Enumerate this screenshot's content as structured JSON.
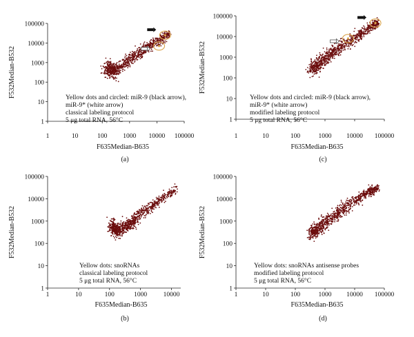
{
  "figure": {
    "panels": [
      {
        "id": "a",
        "label": "(a)",
        "xlabel": "F635Median-B635",
        "ylabel": "F532Median-B532",
        "annotation": [
          "Yellow dots and circled: miR-9 (black arrow),",
          "miR-9* (white arrow)",
          "classical labeling protocol",
          "5 μg total RNA, 56°C"
        ],
        "xticks": [
          "1",
          "10",
          "100",
          "1000",
          "10000",
          "100000"
        ],
        "yticks": [
          "1",
          "10",
          "100",
          "1000",
          "10000",
          "100000"
        ]
      },
      {
        "id": "c",
        "label": "(c)",
        "xlabel": "F635Median-B635",
        "ylabel": "F532Median-B532",
        "annotation": [
          "Yellow dots and circled: miR-9 (black arrow),",
          "miR-9* (white arrow)",
          "modified labeling protocol",
          "5 μg total RNA, 56°C"
        ],
        "xticks": [
          "1",
          "10",
          "100",
          "1000",
          "10000",
          "100000"
        ],
        "yticks": [
          "1",
          "10",
          "100",
          "1000",
          "10000",
          "100000"
        ]
      },
      {
        "id": "b",
        "label": "(b)",
        "xlabel": "F635Median-B635",
        "ylabel": "F532Median-B532",
        "annotation": [
          "Yellow dots: snoRNAs",
          "classical labeling protocol",
          "5 μg total RNA, 56°C"
        ],
        "xticks": [
          "1",
          "10",
          "100",
          "1000",
          "10000"
        ],
        "yticks": [
          "1",
          "10",
          "100",
          "1000",
          "10000",
          "100000"
        ]
      },
      {
        "id": "d",
        "label": "(d)",
        "xlabel": "F635Median-B635",
        "ylabel": "F532Median-B532",
        "annotation": [
          "Yellow dots: snoRNAs antisense probes",
          "modified labeling protocol",
          "5 μg total RNA, 56°C"
        ],
        "xticks": [
          "1",
          "10",
          "100",
          "1000",
          "10000",
          "100000"
        ],
        "yticks": [
          "1",
          "10",
          "100",
          "1000",
          "10000",
          "100000"
        ]
      }
    ],
    "colors": {
      "points": "#6b0d0d",
      "highlight": "#d9a24a",
      "axis": "#222222"
    }
  },
  "chart_data": [
    {
      "type": "scatter",
      "panel": "(a)",
      "xscale": "log",
      "yscale": "log",
      "xlim": [
        1,
        100000
      ],
      "ylim": [
        1,
        100000
      ],
      "grid": false,
      "xlabel": "F635Median-B635",
      "ylabel": "F532Median-B532",
      "cloud_trend": [
        [
          150,
          500
        ],
        [
          300,
          350
        ],
        [
          1000,
          1400
        ],
        [
          3000,
          4000
        ],
        [
          10000,
          12000
        ],
        [
          30000,
          30000
        ]
      ],
      "highlights": [
        {
          "name": "miR-9",
          "x": 20000,
          "y": 25000,
          "marker": "black arrow"
        },
        {
          "name": "miR-9*",
          "x": 12000,
          "y": 7000,
          "marker": "white arrow"
        }
      ]
    },
    {
      "type": "scatter",
      "panel": "(c)",
      "xscale": "log",
      "yscale": "log",
      "xlim": [
        1,
        100000
      ],
      "ylim": [
        1,
        100000
      ],
      "grid": false,
      "xlabel": "F635Median-B635",
      "ylabel": "F532Median-B532",
      "cloud_trend": [
        [
          350,
          250
        ],
        [
          1000,
          800
        ],
        [
          3000,
          3000
        ],
        [
          10000,
          8000
        ],
        [
          30000,
          25000
        ],
        [
          60000,
          50000
        ]
      ],
      "highlights": [
        {
          "name": "miR-9",
          "x": 50000,
          "y": 45000,
          "marker": "black arrow"
        },
        {
          "name": "miR-9*",
          "x": 6000,
          "y": 8000,
          "marker": "white arrow"
        }
      ]
    },
    {
      "type": "scatter",
      "panel": "(b)",
      "xscale": "log",
      "yscale": "log",
      "xlim": [
        1,
        20000
      ],
      "ylim": [
        1,
        100000
      ],
      "grid": false,
      "xlabel": "F635Median-B635",
      "ylabel": "F532Median-B532",
      "cloud_trend": [
        [
          120,
          600
        ],
        [
          200,
          350
        ],
        [
          500,
          900
        ],
        [
          1000,
          2000
        ],
        [
          3000,
          6000
        ],
        [
          15000,
          30000
        ]
      ],
      "highlights": []
    },
    {
      "type": "scatter",
      "panel": "(d)",
      "xscale": "log",
      "yscale": "log",
      "xlim": [
        1,
        100000
      ],
      "ylim": [
        1,
        100000
      ],
      "grid": false,
      "xlabel": "F635Median-B635",
      "ylabel": "F532Median-B532",
      "cloud_trend": [
        [
          350,
          300
        ],
        [
          1000,
          800
        ],
        [
          3000,
          2500
        ],
        [
          10000,
          8000
        ],
        [
          30000,
          20000
        ],
        [
          60000,
          30000
        ]
      ],
      "highlights": []
    }
  ]
}
